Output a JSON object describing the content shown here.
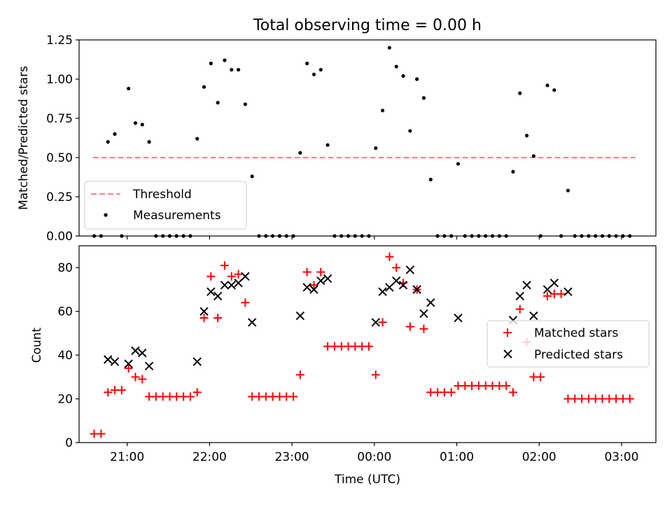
{
  "chart_data": [
    {
      "type": "scatter",
      "panel": "top",
      "title": "Total observing time = 0.00 h",
      "xlabel": "",
      "ylabel": "Matched/Predicted stars",
      "ylim": [
        0,
        1.25
      ],
      "xlim": [
        "20:25",
        "03:25"
      ],
      "yticks": [
        "0.00",
        "0.25",
        "0.50",
        "0.75",
        "1.00",
        "1.25"
      ],
      "xtick_values": [
        "21:00",
        "22:00",
        "23:00",
        "00:00",
        "01:00",
        "02:00",
        "03:00"
      ],
      "x_tick_labels_visible": false,
      "grid": false,
      "legend_position": "lower-left",
      "threshold": {
        "name": "Threshold",
        "y": 0.5,
        "x_start": "20:35",
        "x_end": "03:10",
        "color": "#ff7f7f",
        "style": "dashed"
      },
      "series": [
        {
          "name": "Measurements",
          "color": "#000000",
          "marker": "dot",
          "points": [
            [
              "20:36",
              0
            ],
            [
              "20:41",
              0
            ],
            [
              "20:46",
              0.6
            ],
            [
              "20:51",
              0.65
            ],
            [
              "20:56",
              0
            ],
            [
              "21:01",
              0.94
            ],
            [
              "21:06",
              0.72
            ],
            [
              "21:11",
              0.71
            ],
            [
              "21:16",
              0.6
            ],
            [
              "21:21",
              0
            ],
            [
              "21:26",
              0
            ],
            [
              "21:31",
              0
            ],
            [
              "21:36",
              0
            ],
            [
              "21:41",
              0
            ],
            [
              "21:46",
              0
            ],
            [
              "21:51",
              0.62
            ],
            [
              "21:56",
              0.95
            ],
            [
              "22:01",
              1.1
            ],
            [
              "22:06",
              0.85
            ],
            [
              "22:11",
              1.12
            ],
            [
              "22:16",
              1.06
            ],
            [
              "22:21",
              1.06
            ],
            [
              "22:26",
              0.84
            ],
            [
              "22:31",
              0.38
            ],
            [
              "22:36",
              0
            ],
            [
              "22:41",
              0
            ],
            [
              "22:46",
              0
            ],
            [
              "22:51",
              0
            ],
            [
              "22:56",
              0
            ],
            [
              "23:01",
              0
            ],
            [
              "23:06",
              0.53
            ],
            [
              "23:11",
              1.1
            ],
            [
              "23:16",
              1.03
            ],
            [
              "23:21",
              1.06
            ],
            [
              "23:26",
              0.58
            ],
            [
              "23:31",
              0
            ],
            [
              "23:36",
              0
            ],
            [
              "23:41",
              0
            ],
            [
              "23:46",
              0
            ],
            [
              "23:51",
              0
            ],
            [
              "23:56",
              0
            ],
            [
              "00:01",
              0.56
            ],
            [
              "00:06",
              0.8
            ],
            [
              "00:11",
              1.2
            ],
            [
              "00:16",
              1.08
            ],
            [
              "00:21",
              1.02
            ],
            [
              "00:26",
              0.67
            ],
            [
              "00:31",
              1.0
            ],
            [
              "00:36",
              0.88
            ],
            [
              "00:41",
              0.36
            ],
            [
              "00:46",
              0
            ],
            [
              "00:51",
              0
            ],
            [
              "00:56",
              0
            ],
            [
              "01:01",
              0.46
            ],
            [
              "01:06",
              0
            ],
            [
              "01:11",
              0
            ],
            [
              "01:16",
              0
            ],
            [
              "01:21",
              0
            ],
            [
              "01:26",
              0
            ],
            [
              "01:31",
              0
            ],
            [
              "01:36",
              0
            ],
            [
              "01:41",
              0.41
            ],
            [
              "01:46",
              0.91
            ],
            [
              "01:51",
              0.64
            ],
            [
              "01:56",
              0.51
            ],
            [
              "02:01",
              0
            ],
            [
              "02:06",
              0.96
            ],
            [
              "02:11",
              0.93
            ],
            [
              "02:16",
              0
            ],
            [
              "02:21",
              0.29
            ],
            [
              "02:26",
              0
            ],
            [
              "02:31",
              0
            ],
            [
              "02:36",
              0
            ],
            [
              "02:41",
              0
            ],
            [
              "02:46",
              0
            ],
            [
              "02:51",
              0
            ],
            [
              "02:56",
              0
            ],
            [
              "03:01",
              0
            ],
            [
              "03:06",
              0
            ]
          ]
        }
      ]
    },
    {
      "type": "scatter",
      "panel": "bottom",
      "title": "",
      "xlabel": "Time (UTC)",
      "ylabel": "Count",
      "ylim": [
        0,
        90
      ],
      "xlim": [
        "20:25",
        "03:25"
      ],
      "yticks": [
        "0",
        "20",
        "40",
        "60",
        "80"
      ],
      "xticks": [
        "21:00",
        "22:00",
        "23:00",
        "00:00",
        "01:00",
        "02:00",
        "03:00"
      ],
      "grid": false,
      "legend_position": "center-right",
      "series": [
        {
          "name": "Matched stars",
          "color": "#ff0000",
          "marker": "plus",
          "points": [
            [
              "20:36",
              4
            ],
            [
              "20:41",
              4
            ],
            [
              "20:46",
              23
            ],
            [
              "20:51",
              24
            ],
            [
              "20:56",
              24
            ],
            [
              "21:01",
              34
            ],
            [
              "21:06",
              30
            ],
            [
              "21:11",
              29
            ],
            [
              "21:16",
              21
            ],
            [
              "21:21",
              21
            ],
            [
              "21:26",
              21
            ],
            [
              "21:31",
              21
            ],
            [
              "21:36",
              21
            ],
            [
              "21:41",
              21
            ],
            [
              "21:46",
              21
            ],
            [
              "21:51",
              23
            ],
            [
              "21:56",
              57
            ],
            [
              "22:01",
              76
            ],
            [
              "22:06",
              57
            ],
            [
              "22:11",
              81
            ],
            [
              "22:16",
              76
            ],
            [
              "22:21",
              77
            ],
            [
              "22:26",
              64
            ],
            [
              "22:31",
              21
            ],
            [
              "22:36",
              21
            ],
            [
              "22:41",
              21
            ],
            [
              "22:46",
              21
            ],
            [
              "22:51",
              21
            ],
            [
              "22:56",
              21
            ],
            [
              "23:01",
              21
            ],
            [
              "23:06",
              31
            ],
            [
              "23:11",
              78
            ],
            [
              "23:16",
              72
            ],
            [
              "23:21",
              78
            ],
            [
              "23:26",
              44
            ],
            [
              "23:31",
              44
            ],
            [
              "23:36",
              44
            ],
            [
              "23:41",
              44
            ],
            [
              "23:46",
              44
            ],
            [
              "23:51",
              44
            ],
            [
              "23:56",
              44
            ],
            [
              "00:01",
              31
            ],
            [
              "00:06",
              55
            ],
            [
              "00:11",
              85
            ],
            [
              "00:16",
              80
            ],
            [
              "00:21",
              73
            ],
            [
              "00:26",
              53
            ],
            [
              "00:31",
              70
            ],
            [
              "00:36",
              52
            ],
            [
              "00:41",
              23
            ],
            [
              "00:46",
              23
            ],
            [
              "00:51",
              23
            ],
            [
              "00:56",
              23
            ],
            [
              "01:01",
              26
            ],
            [
              "01:06",
              26
            ],
            [
              "01:11",
              26
            ],
            [
              "01:16",
              26
            ],
            [
              "01:21",
              26
            ],
            [
              "01:26",
              26
            ],
            [
              "01:31",
              26
            ],
            [
              "01:36",
              26
            ],
            [
              "01:41",
              23
            ],
            [
              "01:46",
              61
            ],
            [
              "01:51",
              46
            ],
            [
              "01:56",
              30
            ],
            [
              "02:01",
              30
            ],
            [
              "02:06",
              67
            ],
            [
              "02:11",
              68
            ],
            [
              "02:16",
              68
            ],
            [
              "02:21",
              20
            ],
            [
              "02:26",
              20
            ],
            [
              "02:31",
              20
            ],
            [
              "02:36",
              20
            ],
            [
              "02:41",
              20
            ],
            [
              "02:46",
              20
            ],
            [
              "02:51",
              20
            ],
            [
              "02:56",
              20
            ],
            [
              "03:01",
              20
            ],
            [
              "03:06",
              20
            ]
          ]
        },
        {
          "name": "Predicted stars",
          "color": "#000000",
          "marker": "x",
          "points": [
            [
              "20:46",
              38
            ],
            [
              "20:51",
              37
            ],
            [
              "21:01",
              36
            ],
            [
              "21:06",
              42
            ],
            [
              "21:11",
              41
            ],
            [
              "21:16",
              35
            ],
            [
              "21:51",
              37
            ],
            [
              "21:56",
              60
            ],
            [
              "22:01",
              69
            ],
            [
              "22:06",
              67
            ],
            [
              "22:11",
              72
            ],
            [
              "22:16",
              72
            ],
            [
              "22:21",
              73
            ],
            [
              "22:26",
              76
            ],
            [
              "22:31",
              55
            ],
            [
              "23:06",
              58
            ],
            [
              "23:11",
              71
            ],
            [
              "23:16",
              70
            ],
            [
              "23:21",
              74
            ],
            [
              "23:26",
              75
            ],
            [
              "00:01",
              55
            ],
            [
              "00:06",
              69
            ],
            [
              "00:11",
              71
            ],
            [
              "00:16",
              74
            ],
            [
              "00:21",
              72
            ],
            [
              "00:26",
              79
            ],
            [
              "00:31",
              70
            ],
            [
              "00:36",
              59
            ],
            [
              "00:41",
              64
            ],
            [
              "01:01",
              57
            ],
            [
              "01:41",
              56
            ],
            [
              "01:46",
              67
            ],
            [
              "01:51",
              72
            ],
            [
              "01:56",
              58
            ],
            [
              "02:06",
              70
            ],
            [
              "02:11",
              73
            ],
            [
              "02:21",
              69
            ]
          ]
        }
      ]
    }
  ]
}
